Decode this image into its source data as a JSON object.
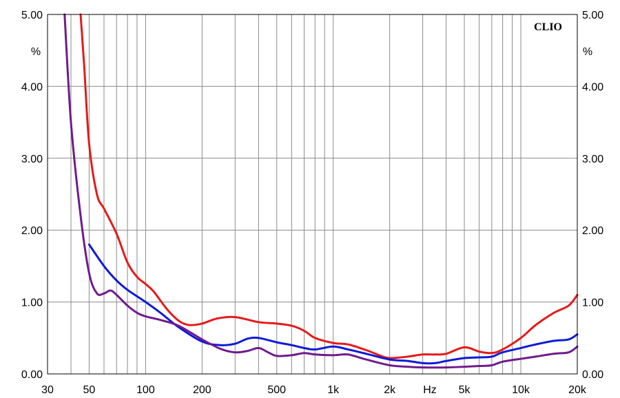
{
  "chart_data": {
    "type": "line",
    "brand": "CLIO",
    "xscale": "log",
    "xlim": [
      30,
      20000
    ],
    "ylim": [
      0,
      5
    ],
    "grid": true,
    "x_unit": "Hz",
    "y_unit_left": "%",
    "y_unit_right": "%",
    "x_tick_labels": [
      {
        "value": 30,
        "label": "30"
      },
      {
        "value": 50,
        "label": "50"
      },
      {
        "value": 100,
        "label": "100"
      },
      {
        "value": 200,
        "label": "200"
      },
      {
        "value": 500,
        "label": "500"
      },
      {
        "value": 1000,
        "label": "1k"
      },
      {
        "value": 2000,
        "label": "2k"
      },
      {
        "value": 5000,
        "label": "5k"
      },
      {
        "value": 10000,
        "label": "10k"
      },
      {
        "value": 20000,
        "label": "20k"
      }
    ],
    "y_tick_labels": [
      {
        "value": 0,
        "label": "0.00"
      },
      {
        "value": 1,
        "label": "1.00"
      },
      {
        "value": 2,
        "label": "2.00"
      },
      {
        "value": 3,
        "label": "3.00"
      },
      {
        "value": 4,
        "label": "4.00"
      },
      {
        "value": 5,
        "label": "5.00"
      }
    ],
    "series": [
      {
        "color": "#e41a1a",
        "points": [
          [
            45,
            5.0
          ],
          [
            47,
            4.3
          ],
          [
            50,
            3.2
          ],
          [
            55,
            2.5
          ],
          [
            60,
            2.3
          ],
          [
            70,
            1.95
          ],
          [
            80,
            1.55
          ],
          [
            90,
            1.35
          ],
          [
            100,
            1.25
          ],
          [
            110,
            1.15
          ],
          [
            130,
            0.9
          ],
          [
            150,
            0.74
          ],
          [
            170,
            0.68
          ],
          [
            200,
            0.7
          ],
          [
            240,
            0.77
          ],
          [
            300,
            0.79
          ],
          [
            400,
            0.72
          ],
          [
            500,
            0.7
          ],
          [
            600,
            0.67
          ],
          [
            700,
            0.6
          ],
          [
            800,
            0.5
          ],
          [
            1000,
            0.43
          ],
          [
            1200,
            0.41
          ],
          [
            1500,
            0.33
          ],
          [
            1800,
            0.25
          ],
          [
            2000,
            0.22
          ],
          [
            2500,
            0.24
          ],
          [
            3000,
            0.27
          ],
          [
            3500,
            0.27
          ],
          [
            4000,
            0.28
          ],
          [
            5000,
            0.37
          ],
          [
            6000,
            0.31
          ],
          [
            7000,
            0.29
          ],
          [
            8000,
            0.34
          ],
          [
            10000,
            0.5
          ],
          [
            12000,
            0.68
          ],
          [
            15000,
            0.85
          ],
          [
            18000,
            0.95
          ],
          [
            20000,
            1.1
          ]
        ]
      },
      {
        "color": "#0d1ad9",
        "points": [
          [
            50,
            1.8
          ],
          [
            60,
            1.5
          ],
          [
            70,
            1.3
          ],
          [
            80,
            1.17
          ],
          [
            100,
            1.0
          ],
          [
            120,
            0.85
          ],
          [
            150,
            0.65
          ],
          [
            200,
            0.45
          ],
          [
            250,
            0.4
          ],
          [
            300,
            0.42
          ],
          [
            350,
            0.49
          ],
          [
            400,
            0.5
          ],
          [
            500,
            0.44
          ],
          [
            600,
            0.4
          ],
          [
            700,
            0.36
          ],
          [
            800,
            0.34
          ],
          [
            1000,
            0.38
          ],
          [
            1200,
            0.34
          ],
          [
            1500,
            0.28
          ],
          [
            2000,
            0.2
          ],
          [
            2500,
            0.18
          ],
          [
            3000,
            0.15
          ],
          [
            3500,
            0.15
          ],
          [
            4000,
            0.18
          ],
          [
            5000,
            0.22
          ],
          [
            6000,
            0.23
          ],
          [
            7000,
            0.24
          ],
          [
            8000,
            0.3
          ],
          [
            10000,
            0.36
          ],
          [
            12000,
            0.41
          ],
          [
            15000,
            0.46
          ],
          [
            18000,
            0.48
          ],
          [
            20000,
            0.55
          ]
        ]
      },
      {
        "color": "#6f1a8c",
        "points": [
          [
            37,
            5.0
          ],
          [
            40,
            3.5
          ],
          [
            45,
            2.2
          ],
          [
            50,
            1.4
          ],
          [
            55,
            1.12
          ],
          [
            60,
            1.12
          ],
          [
            65,
            1.16
          ],
          [
            70,
            1.1
          ],
          [
            80,
            0.95
          ],
          [
            90,
            0.85
          ],
          [
            100,
            0.8
          ],
          [
            120,
            0.75
          ],
          [
            150,
            0.67
          ],
          [
            200,
            0.48
          ],
          [
            250,
            0.35
          ],
          [
            300,
            0.3
          ],
          [
            350,
            0.32
          ],
          [
            400,
            0.36
          ],
          [
            450,
            0.3
          ],
          [
            500,
            0.25
          ],
          [
            600,
            0.26
          ],
          [
            700,
            0.29
          ],
          [
            800,
            0.27
          ],
          [
            1000,
            0.26
          ],
          [
            1200,
            0.27
          ],
          [
            1500,
            0.2
          ],
          [
            2000,
            0.12
          ],
          [
            2500,
            0.1
          ],
          [
            3000,
            0.09
          ],
          [
            4000,
            0.09
          ],
          [
            5000,
            0.1
          ],
          [
            6000,
            0.11
          ],
          [
            7000,
            0.12
          ],
          [
            8000,
            0.17
          ],
          [
            10000,
            0.21
          ],
          [
            12000,
            0.24
          ],
          [
            15000,
            0.28
          ],
          [
            18000,
            0.3
          ],
          [
            20000,
            0.38
          ]
        ]
      }
    ]
  }
}
